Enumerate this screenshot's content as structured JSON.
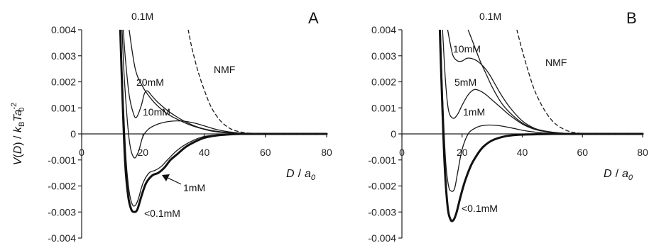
{
  "chart_data": [
    {
      "panel": "A",
      "type": "line",
      "xlabel": "D / a0",
      "ylabel": "V(D) / kBTa0^-2",
      "xlim": [
        0,
        80
      ],
      "ylim": [
        -0.004,
        0.004
      ],
      "x_ticks": [
        "0",
        "20",
        "40",
        "60",
        "80"
      ],
      "y_ticks": [
        "0.004",
        "0.003",
        "0.002",
        "0.001",
        "0",
        "-0.001",
        "-0.002",
        "-0.003",
        "-0.004"
      ],
      "series": [
        {
          "name": "0.1M",
          "style": "solid",
          "width": 1.3,
          "color": "#1a1a1a",
          "x": [
            15.5,
            17.5,
            20,
            23,
            26,
            29,
            32,
            35,
            38,
            42,
            46,
            50,
            55,
            60,
            65,
            70,
            80
          ],
          "y": [
            0.004,
            0.0025,
            0.0018,
            0.0013,
            0.00095,
            0.0007,
            0.00052,
            0.00036,
            0.00024,
            0.00012,
            5e-05,
            2e-05,
            1e-05,
            5e-06,
            0.0,
            0.0,
            0.0
          ]
        },
        {
          "name": "20mM",
          "style": "solid",
          "width": 1.3,
          "color": "#1a1a1a",
          "x": [
            13.6,
            14.2,
            15.5,
            17,
            18,
            19.5,
            20.5,
            21.5,
            23,
            25,
            28,
            31,
            34,
            37,
            40,
            44,
            48,
            52,
            56,
            60,
            65,
            70,
            80
          ],
          "y": [
            0.004,
            0.003,
            0.0015,
            0.00075,
            0.00065,
            0.0011,
            0.00155,
            0.00165,
            0.00145,
            0.0012,
            0.0009,
            0.00066,
            0.00046,
            0.0003,
            0.00019,
            0.0001,
            5e-05,
            2e-05,
            1e-05,
            5e-06,
            0.0,
            0.0,
            0.0
          ]
        },
        {
          "name": "10mM",
          "style": "solid",
          "width": 1.3,
          "color": "#1a1a1a",
          "x": [
            13.2,
            14,
            15.5,
            17,
            18.5,
            20,
            22,
            25,
            28,
            31,
            34,
            37,
            40,
            44,
            48,
            52,
            56,
            60,
            70,
            80
          ],
          "y": [
            0.004,
            0.002,
            -0.0002,
            -0.0009,
            -0.0007,
            -0.0001,
            0.0002,
            0.00038,
            0.00047,
            0.0005,
            0.00048,
            0.00041,
            0.00031,
            0.00017,
            8e-05,
            3e-05,
            1e-05,
            0.0,
            0.0,
            0.0
          ]
        },
        {
          "name": "1mM",
          "style": "solid",
          "width": 1.3,
          "color": "#1a1a1a",
          "x": [
            12.7,
            13.5,
            14.5,
            15.5,
            16.5,
            17.5,
            18.5,
            20,
            22,
            24,
            26,
            28,
            31,
            34,
            37,
            40,
            44,
            48,
            52,
            56,
            60,
            70,
            80
          ],
          "y": [
            0.004,
            0.0015,
            -0.001,
            -0.0022,
            -0.0027,
            -0.00275,
            -0.0025,
            -0.0019,
            -0.0015,
            -0.0014,
            -0.00125,
            -0.001,
            -0.00065,
            -0.0004,
            -0.00022,
            -0.0001,
            -4e-05,
            -1.5e-05,
            0.0,
            0.0,
            0.0,
            0.0,
            0.0
          ]
        },
        {
          "name": "<0.1mM",
          "style": "solid",
          "width": 3.0,
          "color": "#111111",
          "x": [
            12.6,
            13.3,
            14.2,
            15.2,
            16.2,
            17.2,
            18.2,
            19.5,
            21,
            23,
            25,
            27,
            29,
            31,
            34,
            37,
            40,
            44,
            48,
            52,
            56,
            60,
            70,
            80
          ],
          "y": [
            0.004,
            0.0015,
            -0.0011,
            -0.0024,
            -0.0029,
            -0.003,
            -0.0029,
            -0.0024,
            -0.0019,
            -0.0016,
            -0.0015,
            -0.0013,
            -0.001,
            -0.0008,
            -0.0005,
            -0.0003,
            -0.00015,
            -6e-05,
            -2e-05,
            0.0,
            0.0,
            0.0,
            0.0,
            0.0
          ]
        },
        {
          "name": "NMF",
          "style": "dashed",
          "width": 1.3,
          "color": "#1a1a1a",
          "x": [
            34.8,
            36,
            38,
            40,
            42,
            44,
            46,
            48,
            50,
            53,
            56,
            60,
            65,
            70,
            80
          ],
          "y": [
            0.004,
            0.0033,
            0.0024,
            0.0017,
            0.0011,
            0.0007,
            0.00042,
            0.00024,
            0.00013,
            5e-05,
            2e-05,
            5e-06,
            0.0,
            0.0,
            0.0
          ]
        }
      ],
      "annotations": [
        "0.1M",
        "NMF",
        "20mM",
        "10mM",
        "1mM",
        "<0.1mM"
      ],
      "panel_label": "A"
    },
    {
      "panel": "B",
      "type": "line",
      "xlabel": "D / a0",
      "ylabel": "",
      "xlim": [
        0,
        80
      ],
      "ylim": [
        -0.004,
        0.004
      ],
      "x_ticks": [
        "0",
        "20",
        "40",
        "60",
        "80"
      ],
      "y_ticks": [
        "0.004",
        "0.003",
        "0.002",
        "0.001",
        "0",
        "-0.001",
        "-0.002",
        "-0.003",
        "-0.004"
      ],
      "series": [
        {
          "name": "0.1M",
          "style": "solid",
          "width": 1.3,
          "color": "#1a1a1a",
          "x": [
            22,
            24,
            26,
            28,
            30,
            33,
            36,
            40,
            44,
            48,
            52,
            56,
            60,
            70,
            80
          ],
          "y": [
            0.004,
            0.0034,
            0.0028,
            0.0023,
            0.0018,
            0.0012,
            0.0008,
            0.00042,
            0.0002,
            9e-05,
            4e-05,
            1e-05,
            0.0,
            0.0,
            0.0
          ]
        },
        {
          "name": "10mM",
          "style": "solid",
          "width": 1.3,
          "color": "#1a1a1a",
          "x": [
            15.2,
            16,
            17,
            18.5,
            20,
            21.5,
            23,
            25,
            27,
            29,
            31,
            33,
            36,
            40,
            44,
            48,
            52,
            56,
            60,
            70,
            80
          ],
          "y": [
            0.004,
            0.0035,
            0.003,
            0.0028,
            0.0028,
            0.0029,
            0.0029,
            0.0028,
            0.0026,
            0.0023,
            0.0019,
            0.0015,
            0.001,
            0.0005,
            0.00022,
            0.0001,
            4e-05,
            1e-05,
            0.0,
            0.0,
            0.0
          ]
        },
        {
          "name": "5mM",
          "style": "solid",
          "width": 1.3,
          "color": "#1a1a1a",
          "x": [
            13.5,
            14.5,
            15.5,
            17,
            18.5,
            20,
            22,
            24,
            26,
            28,
            30,
            33,
            36,
            40,
            44,
            48,
            52,
            56,
            60,
            70,
            80
          ],
          "y": [
            0.004,
            0.002,
            0.0009,
            0.0006,
            0.00075,
            0.0011,
            0.0015,
            0.0017,
            0.00165,
            0.0015,
            0.0013,
            0.001,
            0.0007,
            0.00038,
            0.00018,
            8e-05,
            3e-05,
            1e-05,
            0.0,
            0.0,
            0.0
          ]
        },
        {
          "name": "1mM",
          "style": "solid",
          "width": 1.3,
          "color": "#1a1a1a",
          "x": [
            12.8,
            13.5,
            14.5,
            15.5,
            16.5,
            17.5,
            18.5,
            20,
            22,
            24,
            26,
            29,
            32,
            36,
            40,
            44,
            48,
            52,
            56,
            60,
            70,
            80
          ],
          "y": [
            0.004,
            0.0015,
            -0.001,
            -0.002,
            -0.0022,
            -0.0021,
            -0.0015,
            -0.0006,
            0.0,
            0.0002,
            0.0003,
            0.00034,
            0.00032,
            0.00024,
            0.00014,
            7e-05,
            3e-05,
            1e-05,
            0.0,
            0.0,
            0.0,
            0.0
          ]
        },
        {
          "name": "<0.1mM",
          "style": "solid",
          "width": 3.0,
          "color": "#111111",
          "x": [
            12.6,
            13.3,
            14.2,
            15.2,
            16.2,
            17.2,
            18.2,
            19.5,
            21,
            23,
            25,
            27,
            30,
            34,
            38,
            42,
            46,
            50,
            55,
            60,
            70,
            80
          ],
          "y": [
            0.004,
            0.0015,
            -0.0012,
            -0.0028,
            -0.0033,
            -0.0033,
            -0.003,
            -0.0024,
            -0.0018,
            -0.0012,
            -0.0008,
            -0.0005,
            -0.00025,
            -0.0001,
            -4e-05,
            -2e-05,
            -1e-05,
            0.0,
            0.0,
            0.0,
            0.0,
            0.0
          ]
        },
        {
          "name": "NMF",
          "style": "dashed",
          "width": 1.3,
          "color": "#1a1a1a",
          "x": [
            38.2,
            40,
            42,
            44,
            46,
            48,
            50,
            52,
            55,
            58,
            62,
            66,
            70,
            80
          ],
          "y": [
            0.004,
            0.0032,
            0.0024,
            0.0017,
            0.0012,
            0.0008,
            0.0005,
            0.0003,
            0.00012,
            4e-05,
            1e-05,
            0.0,
            0.0,
            0.0
          ]
        }
      ],
      "annotations": [
        "0.1M",
        "10mM",
        "NMF",
        "5mM",
        "1mM",
        "<0.1mM"
      ],
      "panel_label": "B"
    }
  ]
}
